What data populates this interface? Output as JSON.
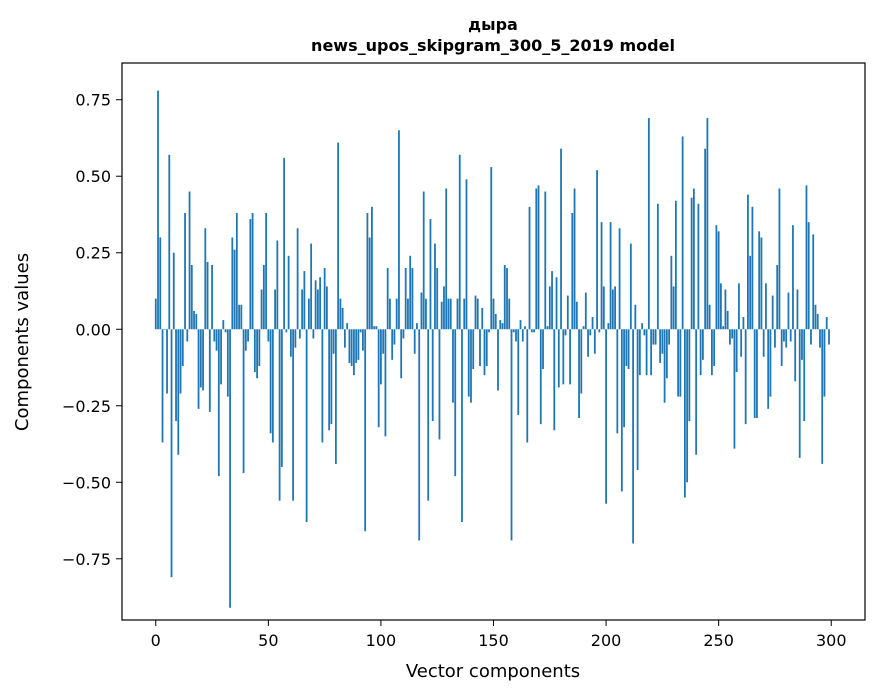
{
  "chart_data": {
    "type": "bar",
    "title": "дыра",
    "subtitle": "news_upos_skipgram_300_5_2019 model",
    "xlabel": "Vector components",
    "ylabel": "Components values",
    "xlim": [
      -15,
      315
    ],
    "ylim": [
      -0.95,
      0.87
    ],
    "xticks": [
      0,
      50,
      100,
      150,
      200,
      250,
      300
    ],
    "yticks": [
      -0.75,
      -0.5,
      -0.25,
      0.0,
      0.25,
      0.5,
      0.75
    ],
    "xtick_labels": [
      "0",
      "50",
      "100",
      "150",
      "200",
      "250",
      "300"
    ],
    "ytick_labels": [
      "−0.75",
      "−0.50",
      "−0.25",
      "0.00",
      "0.25",
      "0.50",
      "0.75"
    ],
    "bar_color": "#1f77b4",
    "values": [
      0.1,
      0.78,
      0.3,
      -0.37,
      0.0,
      -0.21,
      0.57,
      -0.81,
      0.25,
      -0.3,
      -0.41,
      -0.21,
      -0.12,
      0.38,
      -0.04,
      0.45,
      0.21,
      0.06,
      0.05,
      -0.26,
      -0.19,
      -0.2,
      0.33,
      0.22,
      -0.27,
      0.21,
      -0.04,
      -0.07,
      -0.48,
      -0.18,
      0.03,
      -0.01,
      -0.22,
      -0.91,
      0.3,
      0.26,
      0.38,
      0.08,
      0.08,
      -0.47,
      -0.07,
      -0.04,
      0.36,
      0.38,
      -0.14,
      -0.16,
      -0.12,
      0.13,
      0.21,
      0.38,
      -0.04,
      -0.34,
      -0.37,
      0.13,
      0.29,
      -0.56,
      -0.45,
      0.56,
      -0.01,
      0.24,
      -0.09,
      -0.56,
      -0.06,
      0.33,
      -0.03,
      0.13,
      0.19,
      -0.63,
      0.1,
      0.28,
      -0.03,
      0.16,
      0.13,
      0.17,
      -0.37,
      0.2,
      0.14,
      -0.33,
      -0.31,
      -0.08,
      -0.44,
      0.61,
      0.1,
      0.07,
      -0.06,
      0.02,
      -0.11,
      -0.12,
      -0.15,
      -0.11,
      -0.1,
      -0.01,
      -0.07,
      -0.66,
      0.38,
      0.3,
      0.4,
      0.01,
      0.01,
      -0.32,
      -0.18,
      -0.08,
      -0.35,
      0.2,
      0.1,
      -0.1,
      -0.05,
      0.1,
      0.65,
      -0.16,
      -0.03,
      0.2,
      0.1,
      0.24,
      0.2,
      -0.08,
      0.02,
      -0.69,
      0.12,
      0.45,
      0.1,
      -0.56,
      0.36,
      -0.3,
      0.28,
      0.2,
      -0.36,
      0.09,
      0.14,
      0.46,
      0.1,
      0.1,
      -0.24,
      -0.48,
      0.1,
      0.57,
      -0.63,
      0.1,
      0.49,
      -0.22,
      -0.24,
      -0.13,
      0.11,
      0.1,
      -0.12,
      0.07,
      -0.15,
      -0.12,
      -0.01,
      0.53,
      0.1,
      0.05,
      -0.2,
      0.03,
      0.02,
      0.21,
      0.2,
      0.1,
      -0.69,
      -0.01,
      -0.04,
      -0.28,
      0.03,
      -0.04,
      0.01,
      -0.37,
      0.4,
      -0.01,
      -0.01,
      0.46,
      0.47,
      -0.31,
      -0.13,
      0.45,
      0.01,
      0.14,
      0.19,
      -0.33,
      0.17,
      -0.19,
      0.59,
      -0.18,
      -0.02,
      0.11,
      -0.18,
      0.38,
      0.46,
      0.09,
      -0.29,
      -0.21,
      0.01,
      0.12,
      -0.09,
      -0.02,
      0.04,
      -0.08,
      0.52,
      -0.01,
      0.35,
      0.14,
      -0.57,
      0.02,
      0.35,
      0.13,
      0.14,
      -0.34,
      0.33,
      -0.53,
      -0.32,
      -0.12,
      -0.13,
      0.28,
      -0.7,
      0.08,
      -0.46,
      -0.15,
      0.02,
      -0.02,
      -0.15,
      0.69,
      -0.15,
      -0.05,
      -0.05,
      0.41,
      -0.11,
      -0.08,
      -0.24,
      -0.16,
      -0.05,
      0.24,
      0.14,
      0.42,
      -0.22,
      -0.22,
      0.63,
      -0.55,
      -0.5,
      -0.3,
      0.43,
      0.46,
      -0.41,
      0.41,
      -0.15,
      -0.1,
      0.59,
      0.69,
      0.08,
      -0.15,
      -0.12,
      0.34,
      0.32,
      0.15,
      0.01,
      0.13,
      0.06,
      -0.05,
      -0.03,
      -0.39,
      -0.14,
      0.15,
      -0.09,
      0.04,
      -0.31,
      0.44,
      0.24,
      0.4,
      -0.29,
      -0.29,
      0.32,
      0.3,
      -0.09,
      0.15,
      -0.26,
      -0.22,
      0.11,
      -0.06,
      0.21,
      0.46,
      -0.12,
      -0.04,
      -0.06,
      0.12,
      -0.04,
      0.34,
      -0.17,
      0.13,
      -0.42,
      -0.1,
      -0.3,
      0.47,
      0.35,
      -0.05,
      0.31,
      0.08,
      0.05,
      -0.06,
      -0.44,
      -0.22,
      0.04,
      -0.05
    ]
  }
}
